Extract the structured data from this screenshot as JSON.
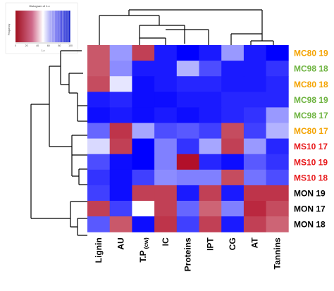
{
  "chart_data": {
    "type": "heatmap",
    "rows": [
      "MC80 19",
      "MC98 18",
      "MC80 18",
      "MC98 19",
      "MC98 17",
      "MC80 17",
      "MS10 17",
      "MS10 19",
      "MS10 18",
      "MON 19",
      "MON 17",
      "MON 18"
    ],
    "row_colors": [
      "#f4a300",
      "#6db33f",
      "#f4a300",
      "#6db33f",
      "#6db33f",
      "#f4a300",
      "#e8191b",
      "#e8191b",
      "#e8191b",
      "#000000",
      "#000000",
      "#000000"
    ],
    "columns": [
      "Lignin",
      "AU",
      "T.P",
      "IC",
      "Proteins",
      "IPT",
      "CG",
      "AT",
      "Tannins"
    ],
    "column_subscripts": [
      "",
      "",
      "(cw)",
      "",
      "",
      "",
      "",
      "",
      ""
    ],
    "values": [
      [
        -0.7,
        0.4,
        -0.8,
        0.9,
        1.0,
        0.9,
        0.4,
        0.9,
        1.0
      ],
      [
        -0.7,
        0.45,
        0.9,
        0.9,
        0.3,
        0.7,
        0.9,
        0.9,
        0.8
      ],
      [
        -0.75,
        0.1,
        0.95,
        0.9,
        0.85,
        0.85,
        0.9,
        0.9,
        0.85
      ],
      [
        0.9,
        0.85,
        0.95,
        0.95,
        0.9,
        0.9,
        0.85,
        0.85,
        0.85
      ],
      [
        0.95,
        0.9,
        0.95,
        0.9,
        0.95,
        0.9,
        0.85,
        0.8,
        0.4
      ],
      [
        0.6,
        -0.85,
        0.35,
        0.7,
        0.65,
        0.75,
        -0.75,
        0.75,
        0.3
      ],
      [
        0.15,
        -0.8,
        1.0,
        0.5,
        0.8,
        0.35,
        -0.8,
        0.4,
        0.85
      ],
      [
        0.7,
        0.95,
        1.0,
        0.5,
        -1.0,
        0.85,
        0.95,
        0.65,
        0.8
      ],
      [
        0.8,
        0.95,
        0.75,
        0.45,
        0.5,
        0.5,
        -0.75,
        0.55,
        0.7
      ],
      [
        0.75,
        0.95,
        -0.8,
        -0.8,
        0.9,
        -0.8,
        0.9,
        -0.85,
        -0.85
      ],
      [
        -0.8,
        0.75,
        0.0,
        -0.8,
        0.6,
        -0.65,
        0.5,
        -0.9,
        -0.75
      ],
      [
        0.65,
        -0.7,
        0.95,
        -0.85,
        0.75,
        -0.8,
        0.9,
        -0.8,
        -0.65
      ]
    ],
    "color_scale": [
      "#b2102a",
      "#ffffff",
      "#0000ff"
    ],
    "color_key": {
      "title": "Histogram of 1-x",
      "xlabel": "1-x",
      "ylabel": "Frequency",
      "ticks": [
        "0",
        "20",
        "40",
        "60",
        "80",
        "100"
      ]
    }
  }
}
